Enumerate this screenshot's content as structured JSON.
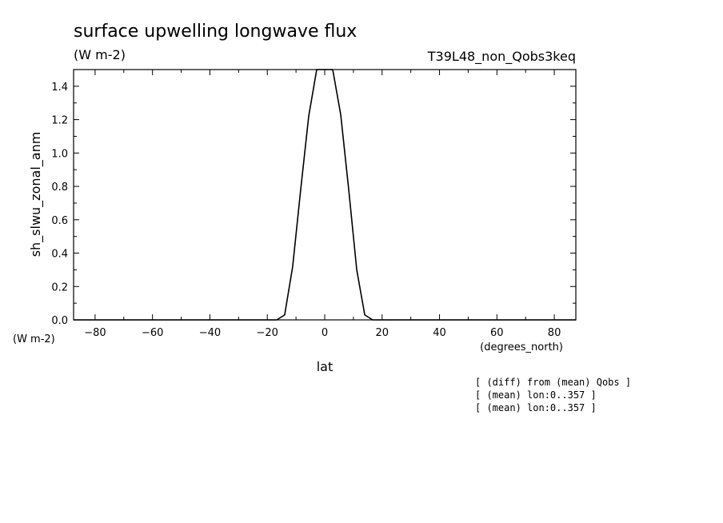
{
  "chart_data": {
    "type": "line",
    "title": "surface upwelling longwave flux",
    "subtitle": "(W m-2)",
    "run_label": "T39L48_non_Qobs3keq",
    "xlabel": "lat",
    "x_units": "(degrees_north)",
    "ylabel": "sh_slwu_zonal_anm",
    "y_units": "(W m-2)",
    "xlim": [
      -87.5,
      87.5
    ],
    "ylim": [
      0,
      1.5
    ],
    "x_ticks": [
      -80,
      -60,
      -40,
      -20,
      0,
      20,
      40,
      60,
      80
    ],
    "x_tick_labels": [
      "−80",
      "−60",
      "−40",
      "−20",
      "0",
      "20",
      "40",
      "60",
      "80"
    ],
    "y_ticks": [
      0,
      0.2,
      0.4,
      0.6,
      0.8,
      1.0,
      1.2,
      1.4
    ],
    "y_tick_labels": [
      "0.0",
      "0.2",
      "0.4",
      "0.6",
      "0.8",
      "1.0",
      "1.2",
      "1.4"
    ],
    "grid": false,
    "series": [
      {
        "x": [
          -87.5,
          -20,
          -16.7,
          -13.95,
          -11.16,
          -8.37,
          -5.58,
          -2.79,
          -1.2,
          1.2,
          2.79,
          5.58,
          8.37,
          11.16,
          13.95,
          16.7,
          20,
          87.5
        ],
        "y": [
          0,
          0,
          0,
          0.03,
          0.32,
          0.78,
          1.22,
          1.5,
          1.5,
          1.5,
          1.5,
          1.23,
          0.78,
          0.3,
          0.03,
          0,
          0,
          0
        ]
      }
    ],
    "annotations": [
      "[ (diff) from (mean) Qobs ]",
      "[ (mean) lon:0..357 ]",
      "[ (mean) lon:0..357 ]"
    ]
  }
}
